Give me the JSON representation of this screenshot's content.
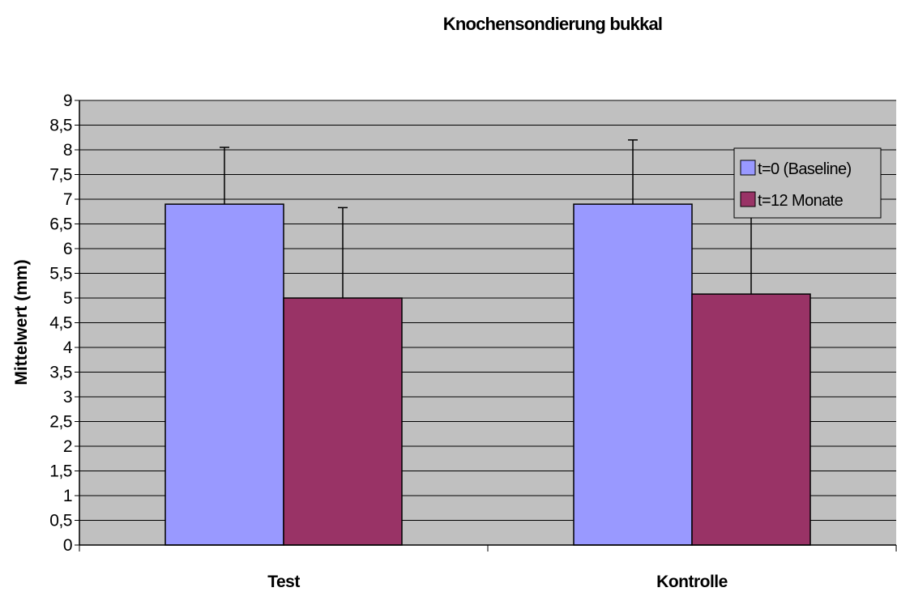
{
  "chart_data": {
    "type": "bar",
    "title": "Knochensondierung bukkal",
    "ylabel": "Mittelwert (mm)",
    "xlabel": "",
    "categories": [
      "Test",
      "Kontrolle"
    ],
    "ylim": [
      0,
      9
    ],
    "y_tick_step": 0.5,
    "y_tick_labels": [
      "0",
      "0,5",
      "1",
      "1,5",
      "2",
      "2,5",
      "3",
      "3,5",
      "4",
      "4,5",
      "5",
      "5,5",
      "6",
      "6,5",
      "7",
      "7,5",
      "8",
      "8,5",
      "9"
    ],
    "grid": true,
    "plot_background": "#c0c0c0",
    "legend_position": "right",
    "series": [
      {
        "name": "t=0 (Baseline)",
        "color": "#9999ff",
        "values": [
          6.9,
          6.9
        ],
        "error_upper": [
          1.15,
          1.3
        ]
      },
      {
        "name": "t=12 Monate",
        "color": "#993366",
        "values": [
          5.0,
          5.08
        ],
        "error_upper": [
          1.83,
          1.8
        ]
      }
    ]
  }
}
